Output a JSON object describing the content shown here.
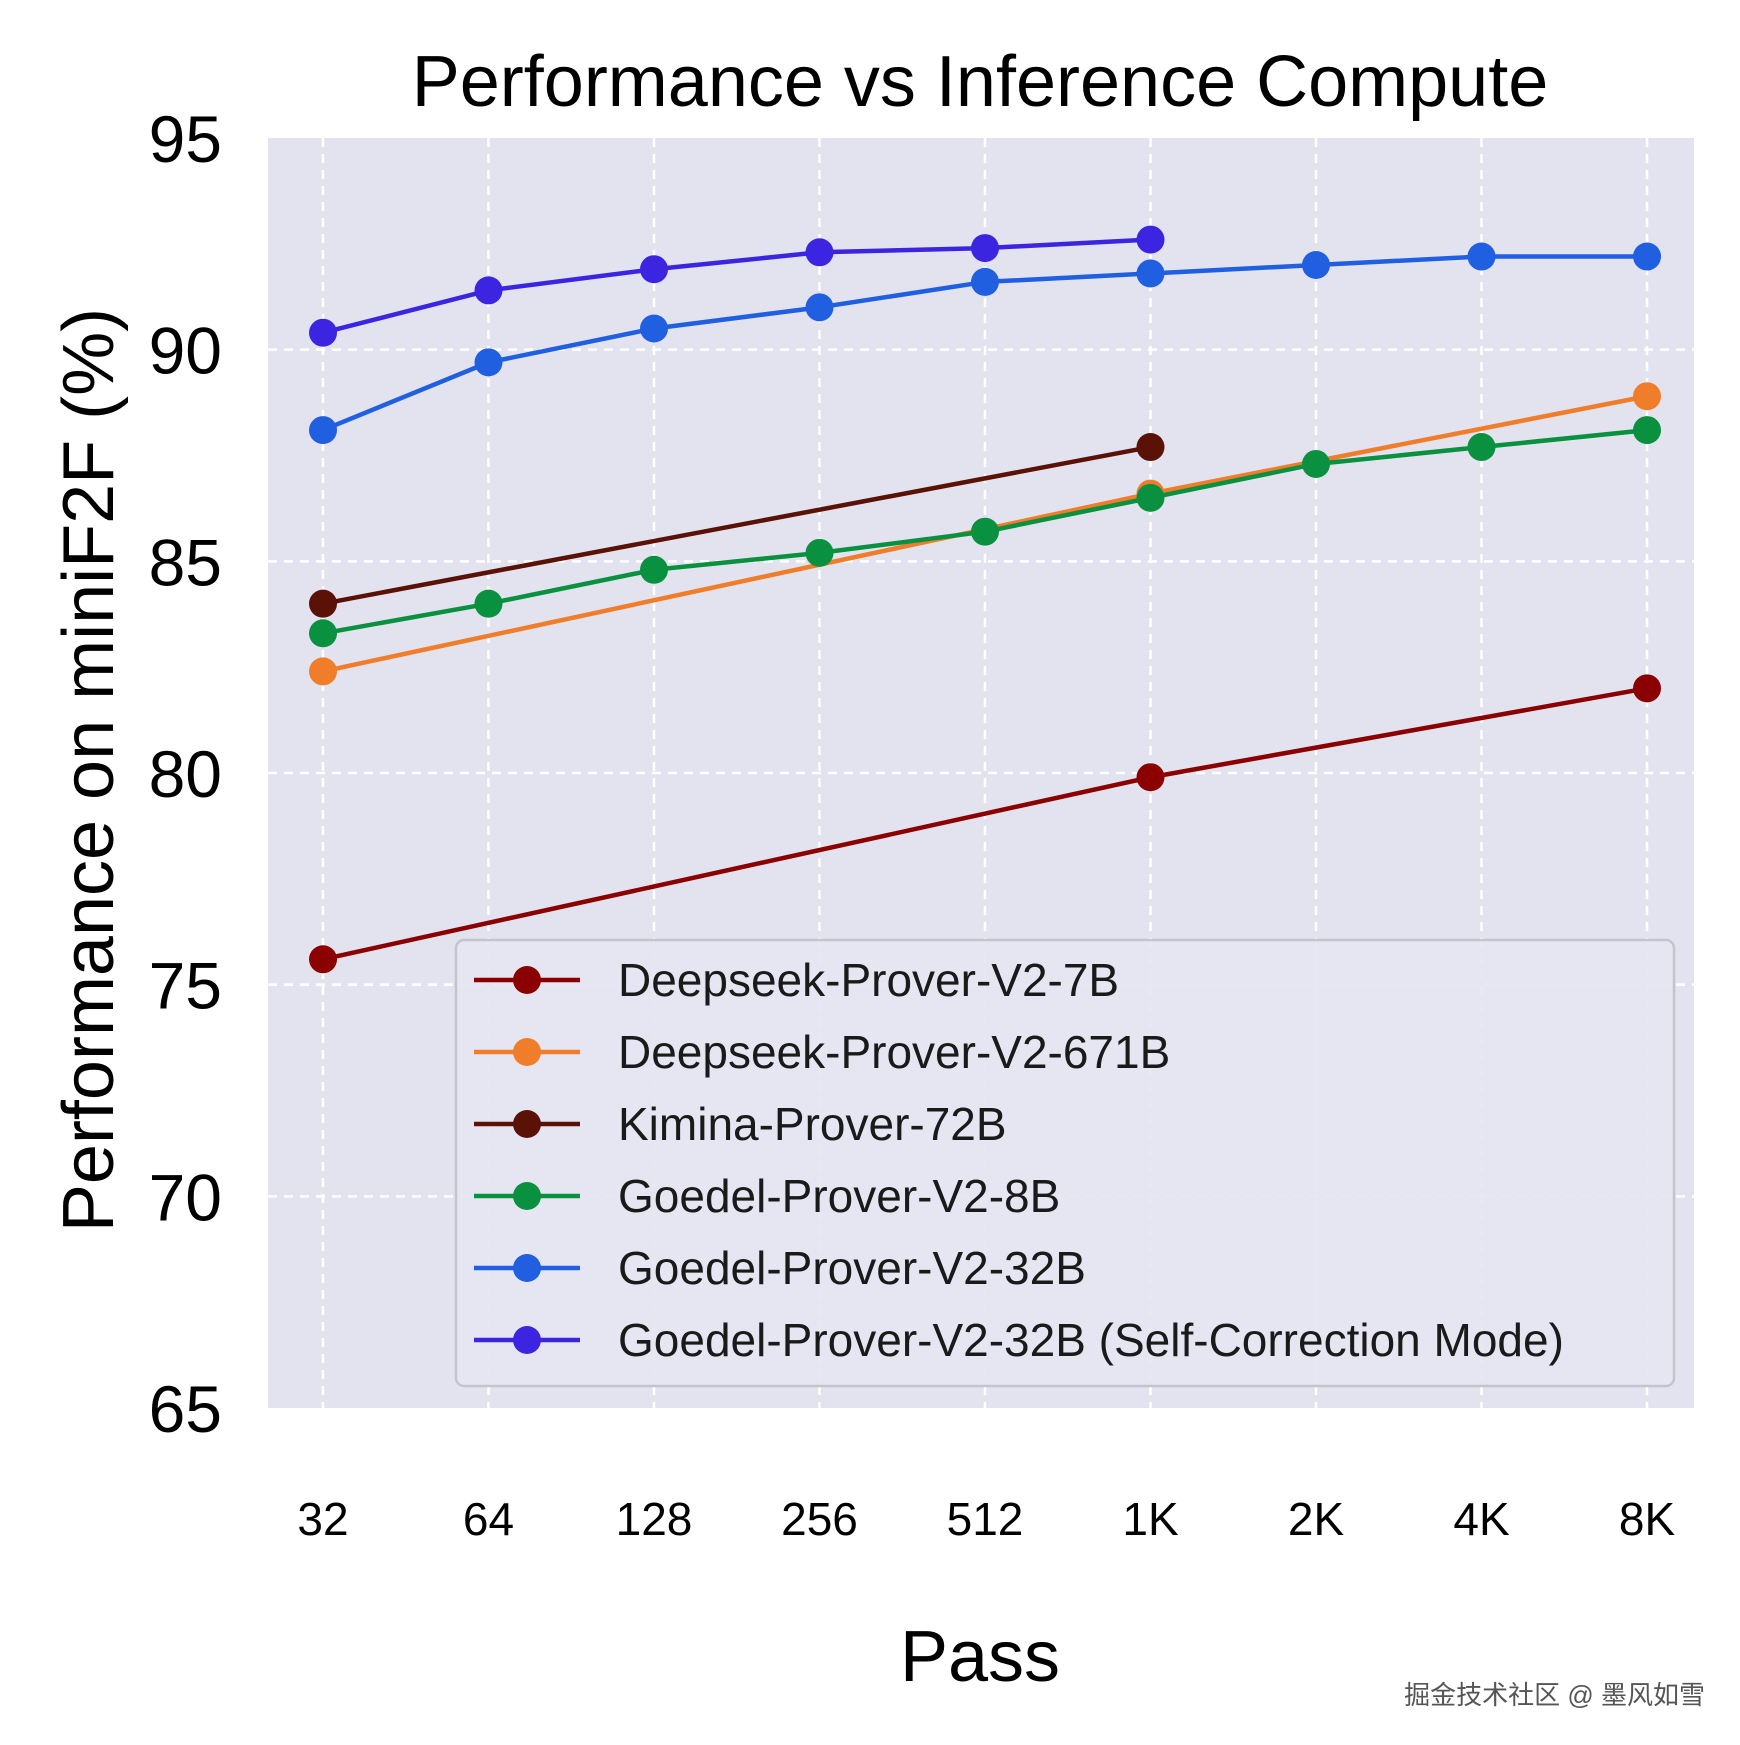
{
  "watermark": "掘金技术社区 @ 墨风如雪",
  "chart_data": {
    "type": "line",
    "title": "Performance vs Inference Compute",
    "xlabel": "Pass",
    "ylabel": "Performance on miniF2F (%)",
    "x_categories": [
      "32",
      "64",
      "128",
      "256",
      "512",
      "1K",
      "2K",
      "4K",
      "8K"
    ],
    "y_ticks": [
      "65",
      "70",
      "75",
      "80",
      "85",
      "90",
      "95"
    ],
    "ylim": [
      65,
      95
    ],
    "grid": true,
    "background": "#e3e3f0",
    "legend_position": "lower-right",
    "series": [
      {
        "name": "Deepseek-Prover-V2-7B",
        "color": "#8b0000",
        "points": [
          {
            "x": "32",
            "y": 75.6
          },
          {
            "x": "1K",
            "y": 79.9
          },
          {
            "x": "8K",
            "y": 82.0
          }
        ]
      },
      {
        "name": "Deepseek-Prover-V2-671B",
        "color": "#f07d2a",
        "points": [
          {
            "x": "32",
            "y": 82.4
          },
          {
            "x": "1K",
            "y": 86.6
          },
          {
            "x": "8K",
            "y": 88.9
          }
        ]
      },
      {
        "name": "Kimina-Prover-72B",
        "color": "#5a1106",
        "points": [
          {
            "x": "32",
            "y": 84.0
          },
          {
            "x": "1K",
            "y": 87.7
          }
        ]
      },
      {
        "name": "Goedel-Prover-V2-8B",
        "color": "#0a9140",
        "points": [
          {
            "x": "32",
            "y": 83.3
          },
          {
            "x": "64",
            "y": 84.0
          },
          {
            "x": "128",
            "y": 84.8
          },
          {
            "x": "256",
            "y": 85.2
          },
          {
            "x": "512",
            "y": 85.7
          },
          {
            "x": "1K",
            "y": 86.5
          },
          {
            "x": "2K",
            "y": 87.3
          },
          {
            "x": "4K",
            "y": 87.7
          },
          {
            "x": "8K",
            "y": 88.1
          }
        ]
      },
      {
        "name": "Goedel-Prover-V2-32B",
        "color": "#1f5fe0",
        "points": [
          {
            "x": "32",
            "y": 88.1
          },
          {
            "x": "64",
            "y": 89.7
          },
          {
            "x": "128",
            "y": 90.5
          },
          {
            "x": "256",
            "y": 91.0
          },
          {
            "x": "512",
            "y": 91.6
          },
          {
            "x": "1K",
            "y": 91.8
          },
          {
            "x": "2K",
            "y": 92.0
          },
          {
            "x": "4K",
            "y": 92.2
          },
          {
            "x": "8K",
            "y": 92.2
          }
        ]
      },
      {
        "name": "Goedel-Prover-V2-32B (Self-Correction Mode)",
        "color": "#3b25e0",
        "points": [
          {
            "x": "32",
            "y": 90.4
          },
          {
            "x": "64",
            "y": 91.4
          },
          {
            "x": "128",
            "y": 91.9
          },
          {
            "x": "256",
            "y": 92.3
          },
          {
            "x": "512",
            "y": 92.4
          },
          {
            "x": "1K",
            "y": 92.6
          }
        ]
      }
    ]
  }
}
